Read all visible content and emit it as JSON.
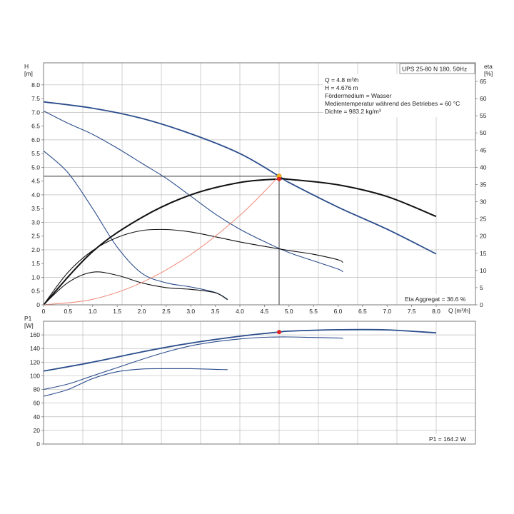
{
  "colors": {
    "background": "#ffffff",
    "grid": "#bdbdbd",
    "frame": "#7a7a7a",
    "pump_curve": "#2b4d8c",
    "eta_curve": "#111111",
    "system_curve": "#f08a7a",
    "duty_point_head": "#f5b324",
    "duty_point_eta": "#dd2222",
    "operating_line": "#333333"
  },
  "chart_data": [
    {
      "id": "head_eta",
      "type": "line",
      "title": "UPS 25-80 N 180, 50Hz",
      "ylabel": "H",
      "ylabel_unit": "[m]",
      "y2label": "eta",
      "y2label_unit": "[%]",
      "xlabel": "Q [m³/h]",
      "xlim": [
        0,
        8.8
      ],
      "ylim": [
        0,
        8.8
      ],
      "y2lim": [
        0,
        70.4
      ],
      "grid": true,
      "x_ticks": [
        "0",
        "0.5",
        "1.0",
        "1.5",
        "2.0",
        "2.5",
        "3.0",
        "3.5",
        "4.0",
        "4.5",
        "5.0",
        "5.5",
        "6.0",
        "6.5",
        "7.0",
        "7.5",
        "8.0"
      ],
      "y_ticks": [
        "0",
        "0.5",
        "1.0",
        "1.5",
        "2.0",
        "2.5",
        "3.0",
        "3.5",
        "4.0",
        "4.5",
        "5.0",
        "5.5",
        "6.0",
        "6.5",
        "7.0",
        "7.5",
        "8.0"
      ],
      "y2_ticks": [
        "0",
        "5",
        "10",
        "15",
        "20",
        "25",
        "30",
        "35",
        "40",
        "45",
        "50",
        "55",
        "60",
        "65"
      ],
      "info": [
        "Q = 4.8 m³/h",
        "H = 4.676 m",
        "Fördermedium = Wasser",
        "Medientemperatur während des Betriebes = 60 °C",
        "Dichte = 983.2 kg/m³"
      ],
      "annotation": "Eta Aggregat = 36.6 %",
      "series": [
        {
          "kind": "head",
          "axis": "left",
          "color": "pump_curve",
          "width": 1.8,
          "x": [
            0,
            1,
            2,
            3,
            4,
            4.8,
            5,
            6,
            7,
            8
          ],
          "y": [
            7.38,
            7.15,
            6.78,
            6.22,
            5.5,
            4.676,
            4.45,
            3.55,
            2.75,
            1.85
          ]
        },
        {
          "kind": "head",
          "axis": "left",
          "color": "pump_curve",
          "width": 1.1,
          "x": [
            0,
            0.5,
            1,
            1.5,
            2,
            2.5,
            3,
            3.5,
            4,
            4.5,
            5,
            5.5,
            6,
            6.1
          ],
          "y": [
            7.05,
            6.6,
            6.2,
            5.7,
            5.15,
            4.6,
            3.95,
            3.3,
            2.75,
            2.3,
            1.9,
            1.6,
            1.3,
            1.2
          ]
        },
        {
          "kind": "head",
          "axis": "left",
          "color": "pump_curve",
          "width": 1.1,
          "x": [
            0,
            0.5,
            1,
            1.5,
            2,
            2.5,
            3,
            3.5,
            3.75
          ],
          "y": [
            5.6,
            4.8,
            3.5,
            2.1,
            1.15,
            0.8,
            0.65,
            0.45,
            0.2
          ]
        },
        {
          "kind": "eta",
          "axis": "right",
          "color": "eta_curve",
          "width": 2.0,
          "x": [
            0,
            1,
            2,
            3,
            4,
            4.8,
            5,
            6,
            7,
            8
          ],
          "y": [
            0,
            15.5,
            25.4,
            32,
            35.6,
            36.6,
            36.5,
            34.9,
            31.5,
            25.7
          ]
        },
        {
          "kind": "eta",
          "axis": "right",
          "color": "eta_curve",
          "width": 1.1,
          "x": [
            0,
            0.5,
            1,
            1.5,
            2,
            2.5,
            3,
            3.5,
            4,
            4.5,
            5,
            5.5,
            6,
            6.1
          ],
          "y": [
            0,
            9.5,
            15.8,
            19.6,
            21.6,
            21.9,
            21.2,
            19.8,
            18.3,
            17,
            15.8,
            14.7,
            13.1,
            12.3
          ]
        },
        {
          "kind": "eta",
          "axis": "right",
          "color": "eta_curve",
          "width": 1.1,
          "x": [
            0,
            0.5,
            1,
            1.5,
            2,
            2.5,
            3,
            3.5,
            3.75
          ],
          "y": [
            0,
            6.5,
            9.5,
            8.6,
            6.4,
            5,
            4.5,
            3.5,
            1.5
          ]
        },
        {
          "kind": "system",
          "axis": "left",
          "color": "system_curve",
          "width": 1.0,
          "x": [
            0,
            1,
            2,
            3,
            4,
            4.8
          ],
          "y": [
            0,
            0.2,
            0.81,
            1.83,
            3.25,
            4.676
          ]
        }
      ],
      "duty_point": {
        "x": 4.8,
        "head": 4.676,
        "eta": 36.6
      }
    },
    {
      "id": "power",
      "type": "line",
      "ylabel": "P1",
      "ylabel_unit": "[W]",
      "xlim": [
        0,
        8.8
      ],
      "ylim": [
        0,
        180
      ],
      "grid": true,
      "y_ticks": [
        "0",
        "20",
        "40",
        "60",
        "80",
        "100",
        "120",
        "140",
        "160"
      ],
      "annotation": "P1 = 164.2 W",
      "series": [
        {
          "color": "pump_curve",
          "width": 1.8,
          "x": [
            0,
            1,
            2,
            3,
            4,
            4.8,
            5,
            6,
            7,
            8
          ],
          "y": [
            107,
            120,
            135,
            148,
            158,
            164.2,
            165.5,
            167.5,
            167.3,
            163
          ]
        },
        {
          "color": "pump_curve",
          "width": 1.1,
          "x": [
            0,
            0.5,
            1,
            1.5,
            2,
            2.5,
            3,
            3.5,
            4,
            4.5,
            5,
            5.5,
            6,
            6.1
          ],
          "y": [
            80,
            88,
            100,
            112,
            124,
            135,
            144,
            150,
            154,
            156.5,
            157,
            156.2,
            155.5,
            155
          ]
        },
        {
          "color": "pump_curve",
          "width": 1.1,
          "x": [
            0,
            0.5,
            1,
            1.5,
            2,
            2.5,
            3,
            3.5,
            3.75
          ],
          "y": [
            70,
            80,
            96,
            106,
            110,
            110.5,
            110.5,
            109.5,
            109
          ]
        }
      ],
      "duty_point": {
        "x": 4.8,
        "y": 164.2
      }
    }
  ]
}
